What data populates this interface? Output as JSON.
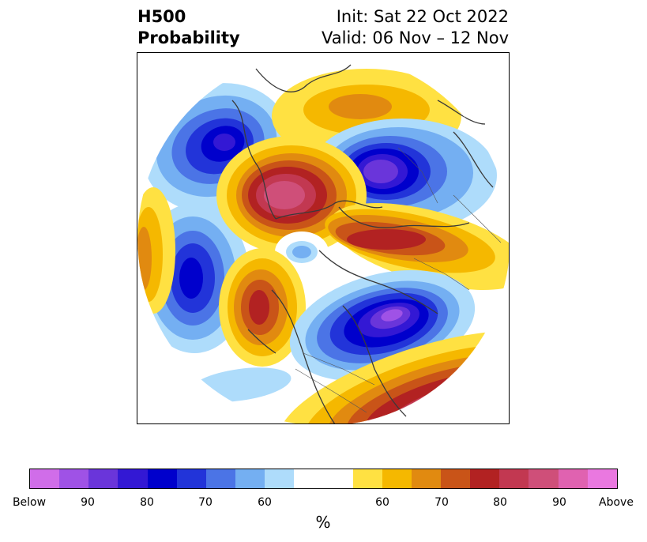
{
  "header": {
    "variable": "H500",
    "product": "Probability",
    "init": "Init: Sat 22 Oct 2022",
    "valid": "Valid: 06 Nov – 12 Nov"
  },
  "map": {
    "projection": "north-polar-stereographic",
    "anomalies": [
      {
        "sign": "below",
        "level": 95,
        "region": "North Pacific (west)"
      },
      {
        "sign": "below",
        "level": 85,
        "region": "Central Pacific"
      },
      {
        "sign": "below",
        "level": 95,
        "region": "Northern Siberia"
      },
      {
        "sign": "above",
        "level": 95,
        "region": "Western Siberia / Kara Sea"
      },
      {
        "sign": "above",
        "level": 80,
        "region": "Scandinavia / Northern Europe"
      },
      {
        "sign": "above",
        "level": 80,
        "region": "Alaska"
      },
      {
        "sign": "below",
        "level": 95,
        "region": "Eastern Canada / Hudson Bay"
      },
      {
        "sign": "above",
        "level": 90,
        "region": "North Atlantic"
      }
    ]
  },
  "colorbar": {
    "unit_label": "%",
    "colors": [
      "#d06de9",
      "#9f52e6",
      "#6a35da",
      "#3318d4",
      "#0000cc",
      "#2234d9",
      "#4b74e6",
      "#74aff2",
      "#aedcfb",
      "#ffffff",
      "#ffe142",
      "#f5b800",
      "#e18a10",
      "#c95418",
      "#b22222",
      "#c23851",
      "#cf4f79",
      "#e062b0",
      "#ea78e0"
    ],
    "widths": [
      1,
      1,
      1,
      1,
      1,
      1,
      1,
      1,
      1,
      2,
      1,
      1,
      1,
      1,
      1,
      1,
      1,
      1,
      1
    ],
    "tick_labels": [
      "Below",
      "90",
      "80",
      "70",
      "60",
      "60",
      "70",
      "80",
      "90",
      "Above"
    ]
  }
}
